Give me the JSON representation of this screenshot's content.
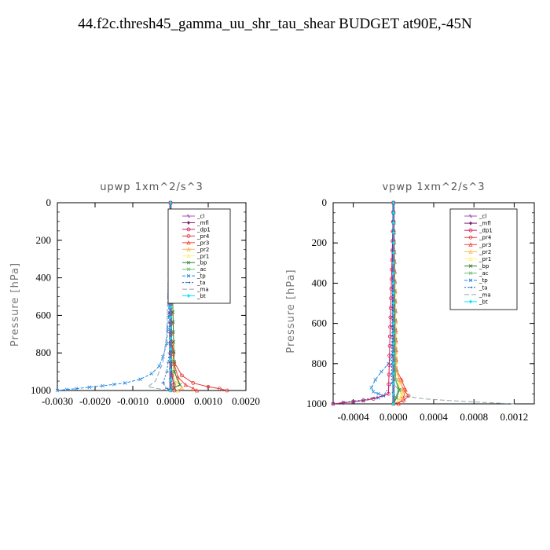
{
  "title": "44.f2c.thresh45_gamma_uu_shr_tau_shear  BUDGET at90E,-45N",
  "colors": {
    "_cl": "#9b59b6",
    "_mfl": "#7b1f6f",
    "_dp1": "#d81b60",
    "_pr4": "#e53935",
    "_pr3": "#f44336",
    "_pr2": "#ffb74d",
    "_pr1": "#fff176",
    "_bp": "#2e7d32",
    "_ac": "#66bb6a",
    "_tp": "#1e88e5",
    "_ta": "#1565c0",
    "_ma": "#90a4ae",
    "_bt": "#00e5ff"
  },
  "chart_data": [
    {
      "type": "line",
      "title": "upwp   1xm^2/s^3",
      "ylabel": "Pressure  [hPa]",
      "xlabel": "",
      "xlim": [
        -0.003,
        0.002
      ],
      "ylim": [
        1000,
        0
      ],
      "yticks": [
        0,
        200,
        400,
        600,
        800,
        1000
      ],
      "xticks": [
        -0.003,
        -0.002,
        -0.001,
        0.0,
        0.001,
        0.002
      ],
      "xtick_labels": [
        "-0.0030",
        "-0.0020",
        "-0.0010",
        "0.0000",
        "0.0010",
        "0.0020"
      ],
      "legend": [
        "_cl",
        "_mfl",
        "_dp1",
        "_pr4",
        "_pr3",
        "_pr2",
        "_pr1",
        "_bp",
        "_ac",
        "_tp",
        "_ta",
        "_ma",
        "_bt"
      ],
      "legend_position": "top-right",
      "series": [
        {
          "name": "_tp",
          "x": [
            0.0,
            -5e-05,
            -0.0001,
            -0.0002,
            -0.0003,
            -0.0005,
            -0.0008,
            -0.0012,
            -0.0018,
            -0.0025,
            -0.003
          ],
          "y": [
            0,
            600,
            750,
            820,
            870,
            910,
            940,
            960,
            975,
            990,
            1000
          ]
        },
        {
          "name": "_ma",
          "x": [
            0.0,
            -0.0001,
            -0.0002,
            -0.0004,
            -0.0006,
            -0.0002,
            0.0
          ],
          "y": [
            0,
            700,
            850,
            950,
            980,
            995,
            1000
          ]
        },
        {
          "name": "_pr4",
          "x": [
            0.0,
            2e-05,
            0.0001,
            0.0003,
            0.0006,
            0.001,
            0.0013,
            0.0015
          ],
          "y": [
            0,
            700,
            850,
            920,
            960,
            980,
            990,
            1000
          ]
        },
        {
          "name": "_pr3",
          "x": [
            0.0,
            3e-05,
            0.0001,
            0.0002,
            0.0004,
            0.0006,
            0.0007
          ],
          "y": [
            0,
            750,
            860,
            930,
            970,
            990,
            1000
          ]
        },
        {
          "name": "_pr2",
          "x": [
            0.0,
            2e-05,
            0.0001,
            0.0002,
            0.0003,
            0.0002
          ],
          "y": [
            0,
            800,
            900,
            950,
            985,
            1000
          ]
        },
        {
          "name": "_pr1",
          "x": [
            0.0,
            2e-05,
            8e-05,
            0.00015,
            0.0001
          ],
          "y": [
            0,
            850,
            930,
            970,
            1000
          ]
        },
        {
          "name": "_bp",
          "x": [
            0.0,
            0.0001,
            0.00025,
            0.0001,
            0.0
          ],
          "y": [
            0,
            900,
            970,
            985,
            1000
          ]
        },
        {
          "name": "_ac",
          "x": [
            0.0,
            3e-05,
            0.0001,
            5e-05,
            0.0
          ],
          "y": [
            0,
            900,
            960,
            985,
            1000
          ]
        },
        {
          "name": "_ta",
          "x": [
            0.0,
            -3e-05,
            -0.0001,
            -0.0002,
            -0.0001,
            0.0
          ],
          "y": [
            0,
            800,
            900,
            960,
            990,
            1000
          ]
        },
        {
          "name": "_dp1",
          "x": [
            0.0,
            1e-05,
            4e-05,
            8e-05,
            0.0001
          ],
          "y": [
            0,
            800,
            920,
            970,
            1000
          ]
        },
        {
          "name": "_cl",
          "x": [
            0.0,
            0.0,
            0.0
          ],
          "y": [
            0,
            500,
            1000
          ]
        },
        {
          "name": "_mfl",
          "x": [
            0.0,
            0.0,
            0.0
          ],
          "y": [
            0,
            500,
            1000
          ]
        },
        {
          "name": "_bt",
          "x": [
            0.0,
            0.0,
            0.0
          ],
          "y": [
            0,
            500,
            1000
          ]
        }
      ]
    },
    {
      "type": "line",
      "title": "vpwp   1xm^2/s^3",
      "ylabel": "Pressure  [hPa]",
      "xlabel": "",
      "xlim": [
        -0.0006,
        0.0014
      ],
      "ylim": [
        1000,
        0
      ],
      "yticks": [
        0,
        200,
        400,
        600,
        800,
        1000
      ],
      "xticks": [
        -0.0004,
        0.0,
        0.0004,
        0.0008,
        0.0012
      ],
      "xtick_labels": [
        "-0.0004",
        "0.0000",
        "0.0004",
        "0.0008",
        "0.0012"
      ],
      "legend": [
        "_cl",
        "_mfl",
        "_dp1",
        "_pr4",
        "_pr3",
        "_pr2",
        "_pr1",
        "_bp",
        "_ac",
        "_tp",
        "_ta",
        "_ma",
        "_bt"
      ],
      "legend_position": "top-right",
      "series": [
        {
          "name": "_tp",
          "x": [
            0.0,
            0.0,
            -5e-05,
            -0.00012,
            -0.00018,
            -0.00022,
            -0.0002,
            -0.00015,
            -0.0001,
            -0.00015,
            -0.0003,
            -0.0005,
            -0.0006
          ],
          "y": [
            0,
            750,
            800,
            840,
            880,
            920,
            940,
            950,
            960,
            970,
            985,
            995,
            1000
          ]
        },
        {
          "name": "_ma",
          "x": [
            0.0,
            0.0,
            0.0001,
            0.0003,
            0.0006,
            0.0009,
            0.0012
          ],
          "y": [
            0,
            900,
            960,
            975,
            985,
            993,
            1000
          ]
        },
        {
          "name": "_pr4",
          "x": [
            0.0,
            2e-05,
            6e-05,
            0.0001,
            0.00015,
            0.0001,
            0.0
          ],
          "y": [
            0,
            820,
            880,
            930,
            960,
            985,
            1000
          ]
        },
        {
          "name": "_pr3",
          "x": [
            0.0,
            3e-05,
            8e-05,
            0.00012,
            0.0001,
            5e-05
          ],
          "y": [
            0,
            830,
            880,
            930,
            970,
            1000
          ]
        },
        {
          "name": "_pr2",
          "x": [
            0.0,
            3e-05,
            7e-05,
            0.0001,
            8e-05,
            0.0
          ],
          "y": [
            0,
            840,
            890,
            940,
            970,
            1000
          ]
        },
        {
          "name": "_pr1",
          "x": [
            0.0,
            2e-05,
            5e-05,
            8e-05,
            6e-05,
            0.0
          ],
          "y": [
            0,
            850,
            900,
            945,
            975,
            1000
          ]
        },
        {
          "name": "_bp",
          "x": [
            0.0,
            2e-05,
            6e-05,
            3e-05,
            0.0
          ],
          "y": [
            0,
            880,
            930,
            970,
            1000
          ]
        },
        {
          "name": "_ac",
          "x": [
            0.0,
            2e-05,
            5e-05,
            2e-05,
            0.0
          ],
          "y": [
            0,
            880,
            930,
            970,
            1000
          ]
        },
        {
          "name": "_ta",
          "x": [
            0.0,
            -2e-05,
            -0.0001,
            -0.0003,
            -0.0005,
            -0.0006
          ],
          "y": [
            0,
            900,
            960,
            980,
            993,
            1000
          ]
        },
        {
          "name": "_dp1",
          "x": [
            0.0,
            -5e-05,
            -0.0002,
            -0.0004,
            -0.0006
          ],
          "y": [
            0,
            950,
            975,
            990,
            1000
          ]
        },
        {
          "name": "_cl",
          "x": [
            0.0,
            0.0,
            0.0
          ],
          "y": [
            0,
            500,
            1000
          ]
        },
        {
          "name": "_mfl",
          "x": [
            0.0,
            0.0,
            0.0
          ],
          "y": [
            0,
            500,
            1000
          ]
        },
        {
          "name": "_bt",
          "x": [
            0.0,
            0.0,
            0.0
          ],
          "y": [
            0,
            500,
            1000
          ]
        }
      ]
    }
  ]
}
